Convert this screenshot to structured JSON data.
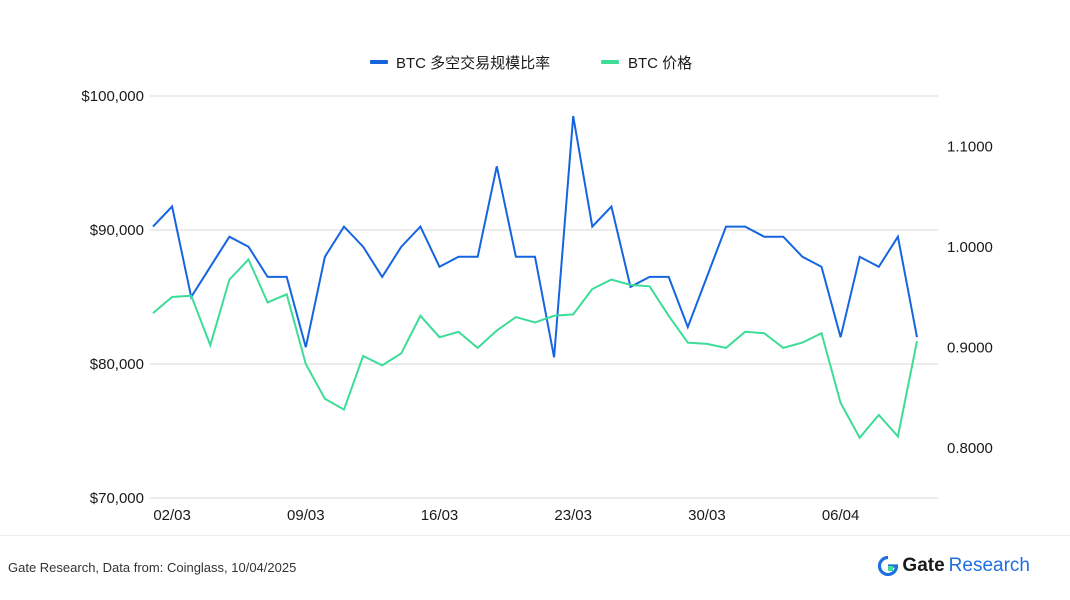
{
  "chart_data": {
    "type": "line",
    "legend": {
      "placement": "top-center",
      "entries": [
        "BTC 多空交易规模比率",
        "BTC 价格"
      ]
    },
    "x": [
      "01/03",
      "02/03",
      "03/03",
      "04/03",
      "05/03",
      "06/03",
      "07/03",
      "08/03",
      "09/03",
      "10/03",
      "11/03",
      "12/03",
      "13/03",
      "14/03",
      "15/03",
      "16/03",
      "17/03",
      "18/03",
      "19/03",
      "20/03",
      "21/03",
      "22/03",
      "23/03",
      "24/03",
      "25/03",
      "26/03",
      "27/03",
      "28/03",
      "29/03",
      "30/03",
      "31/03",
      "01/04",
      "02/04",
      "03/04",
      "04/04",
      "05/04",
      "06/04",
      "07/04",
      "08/04",
      "09/04",
      "10/04"
    ],
    "x_tick_labels": [
      "02/03",
      "09/03",
      "16/03",
      "23/03",
      "30/03",
      "06/04"
    ],
    "y_left": {
      "ticks": [
        "$100,000",
        "$90,000",
        "$80,000",
        "$70,000"
      ],
      "range": [
        70000,
        100000
      ]
    },
    "y_right": {
      "ticks": [
        "1.1000",
        "1.0000",
        "0.9000",
        "0.8000"
      ],
      "range": [
        0.75,
        1.15
      ]
    },
    "grid": true,
    "series": [
      {
        "name": "BTC 多空交易规模比率",
        "axis": "right",
        "color": "#1565e0",
        "values": [
          1.02,
          1.04,
          0.95,
          0.98,
          1.01,
          1.0,
          0.97,
          0.97,
          0.9,
          0.99,
          1.02,
          1.0,
          0.97,
          1.0,
          1.02,
          0.98,
          0.99,
          0.99,
          1.08,
          0.99,
          0.99,
          0.89,
          1.13,
          1.02,
          1.04,
          0.96,
          0.97,
          0.97,
          0.92,
          0.97,
          1.02,
          1.02,
          1.01,
          1.01,
          0.99,
          0.98,
          0.91,
          0.99,
          0.98,
          1.01,
          0.91
        ]
      },
      {
        "name": "BTC 价格",
        "axis": "left",
        "color": "#3ddc97",
        "values": [
          83800,
          85000,
          85100,
          81400,
          86300,
          87800,
          84600,
          85200,
          80000,
          77400,
          76600,
          80600,
          79900,
          80800,
          83600,
          82000,
          82400,
          81200,
          82500,
          83500,
          83100,
          83600,
          83700,
          85600,
          86300,
          85900,
          85800,
          83600,
          81600,
          81500,
          81200,
          82400,
          82300,
          81200,
          81600,
          82300,
          77100,
          74500,
          76200,
          74600,
          81700
        ]
      }
    ]
  },
  "footer": {
    "source": "Gate Research, Data from: Coinglass, 10/04/2025",
    "brand_name": "Gate",
    "brand_suffix": "Research"
  }
}
